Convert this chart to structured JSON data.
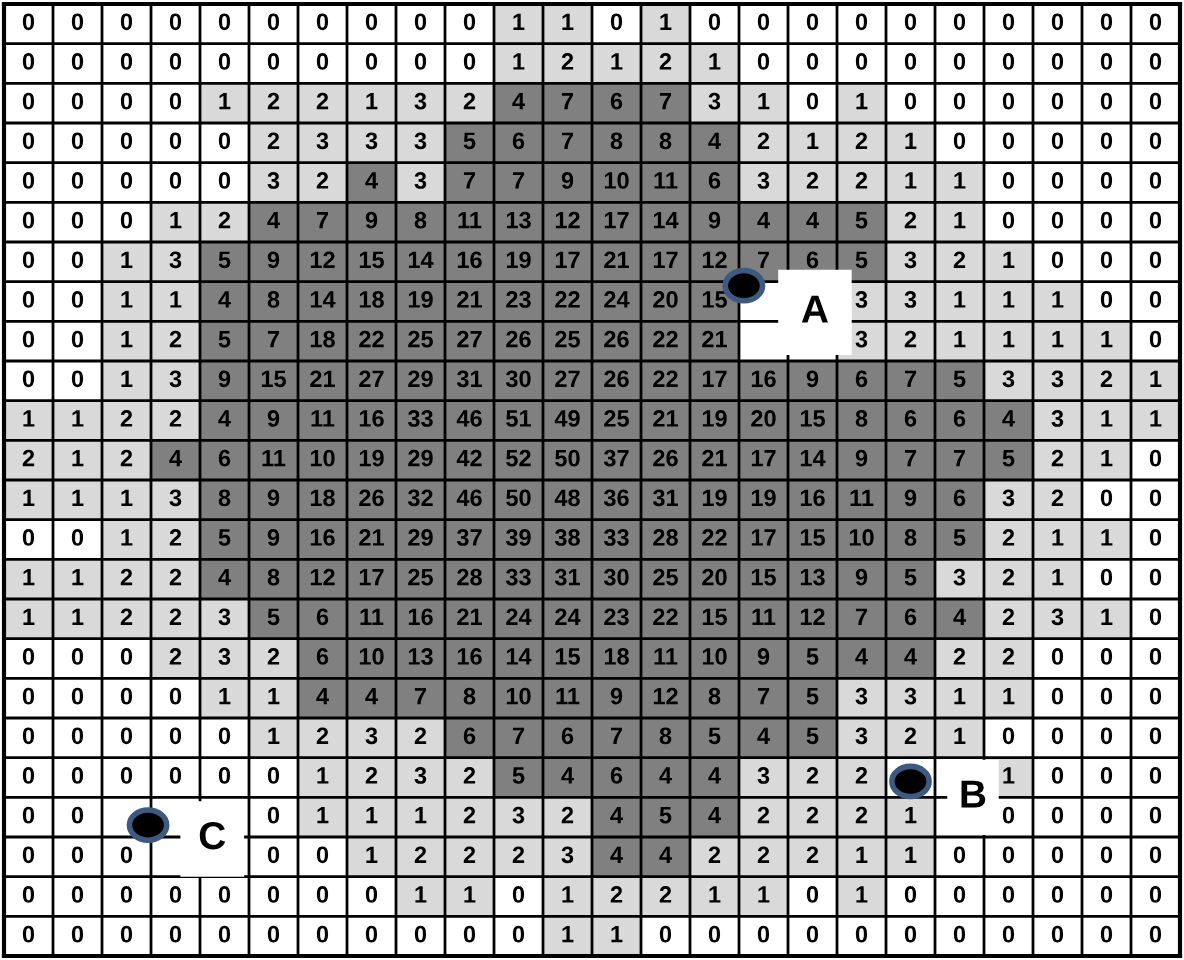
{
  "chart_data": {
    "type": "heatmap",
    "categories": [
      null,
      null,
      null,
      null,
      null,
      null,
      null,
      null,
      null,
      null,
      null,
      null,
      null,
      null,
      null,
      null,
      null,
      null,
      null,
      null,
      null,
      null,
      null,
      null
    ],
    "y_categories": [
      null,
      null,
      null,
      null,
      null,
      null,
      null,
      null,
      null,
      null,
      null,
      null,
      null,
      null,
      null,
      null,
      null,
      null,
      null,
      null,
      null,
      null,
      null,
      null
    ],
    "colors": [
      "#ffffff",
      "#d9d9d9",
      "#808080"
    ],
    "data_labels": true,
    "annotations": [
      "A",
      "B",
      "C"
    ],
    "cells": [
      [
        0,
        0,
        0,
        0,
        0,
        0,
        0,
        0,
        0,
        0,
        1,
        1,
        0,
        1,
        0,
        0,
        0,
        0,
        0,
        0,
        0,
        0,
        0,
        0
      ],
      [
        0,
        0,
        0,
        0,
        0,
        0,
        0,
        0,
        0,
        0,
        1,
        2,
        1,
        2,
        1,
        0,
        0,
        0,
        0,
        0,
        0,
        0,
        0,
        0
      ],
      [
        0,
        0,
        0,
        0,
        1,
        2,
        2,
        1,
        3,
        2,
        4,
        7,
        6,
        7,
        3,
        1,
        0,
        1,
        0,
        0,
        0,
        0,
        0,
        0
      ],
      [
        0,
        0,
        0,
        0,
        0,
        2,
        3,
        3,
        3,
        5,
        6,
        7,
        8,
        8,
        4,
        2,
        1,
        2,
        1,
        0,
        0,
        0,
        0,
        0
      ],
      [
        0,
        0,
        0,
        0,
        0,
        3,
        2,
        4,
        3,
        7,
        7,
        9,
        10,
        11,
        6,
        3,
        2,
        2,
        1,
        1,
        0,
        0,
        0,
        0
      ],
      [
        0,
        0,
        0,
        1,
        2,
        4,
        7,
        9,
        8,
        11,
        13,
        12,
        17,
        14,
        9,
        4,
        4,
        5,
        2,
        1,
        0,
        0,
        0,
        0
      ],
      [
        0,
        0,
        1,
        3,
        5,
        9,
        12,
        15,
        14,
        16,
        19,
        17,
        21,
        17,
        12,
        7,
        6,
        5,
        3,
        2,
        1,
        0,
        0,
        0
      ],
      [
        0,
        0,
        1,
        1,
        4,
        8,
        14,
        18,
        19,
        21,
        23,
        22,
        24,
        20,
        15,
        null,
        null,
        3,
        3,
        1,
        1,
        1,
        0,
        0
      ],
      [
        0,
        0,
        1,
        2,
        5,
        7,
        18,
        22,
        25,
        27,
        26,
        25,
        26,
        22,
        21,
        null,
        null,
        3,
        2,
        1,
        1,
        1,
        1,
        0
      ],
      [
        0,
        0,
        1,
        3,
        9,
        15,
        21,
        27,
        29,
        31,
        30,
        27,
        26,
        22,
        17,
        16,
        9,
        6,
        7,
        5,
        3,
        3,
        2,
        1
      ],
      [
        1,
        1,
        2,
        2,
        4,
        9,
        11,
        16,
        33,
        46,
        51,
        49,
        25,
        21,
        19,
        20,
        15,
        8,
        6,
        6,
        4,
        3,
        1,
        1
      ],
      [
        2,
        1,
        2,
        4,
        6,
        11,
        10,
        19,
        29,
        42,
        52,
        50,
        37,
        26,
        21,
        17,
        14,
        9,
        7,
        7,
        5,
        2,
        1,
        0
      ],
      [
        1,
        1,
        1,
        3,
        8,
        9,
        18,
        26,
        32,
        46,
        50,
        48,
        36,
        31,
        19,
        19,
        16,
        11,
        9,
        6,
        3,
        2,
        0,
        0
      ],
      [
        0,
        0,
        1,
        2,
        5,
        9,
        16,
        21,
        29,
        37,
        39,
        38,
        33,
        28,
        22,
        17,
        15,
        10,
        8,
        5,
        2,
        1,
        1,
        0
      ],
      [
        1,
        1,
        2,
        2,
        4,
        8,
        12,
        17,
        25,
        28,
        33,
        31,
        30,
        25,
        20,
        15,
        13,
        9,
        5,
        3,
        2,
        1,
        0,
        0
      ],
      [
        1,
        1,
        2,
        2,
        3,
        5,
        6,
        11,
        16,
        21,
        24,
        24,
        23,
        22,
        15,
        11,
        12,
        7,
        6,
        4,
        2,
        3,
        1,
        0
      ],
      [
        0,
        0,
        0,
        2,
        3,
        2,
        6,
        10,
        13,
        16,
        14,
        15,
        18,
        11,
        10,
        9,
        5,
        4,
        4,
        2,
        2,
        0,
        0,
        0
      ],
      [
        0,
        0,
        0,
        0,
        1,
        1,
        4,
        4,
        7,
        8,
        10,
        11,
        9,
        12,
        8,
        7,
        5,
        3,
        3,
        1,
        1,
        0,
        0,
        0
      ],
      [
        0,
        0,
        0,
        0,
        0,
        1,
        2,
        3,
        2,
        6,
        7,
        6,
        7,
        8,
        5,
        4,
        5,
        3,
        2,
        1,
        0,
        0,
        0,
        0
      ],
      [
        0,
        0,
        0,
        0,
        0,
        0,
        1,
        2,
        3,
        2,
        5,
        4,
        6,
        4,
        4,
        3,
        2,
        2,
        null,
        null,
        1,
        0,
        0,
        0
      ],
      [
        0,
        0,
        null,
        null,
        null,
        0,
        1,
        1,
        1,
        2,
        3,
        2,
        4,
        5,
        4,
        2,
        2,
        2,
        1,
        null,
        0,
        0,
        0,
        0
      ],
      [
        0,
        0,
        0,
        null,
        null,
        0,
        0,
        1,
        2,
        2,
        2,
        3,
        4,
        4,
        2,
        2,
        2,
        1,
        1,
        0,
        0,
        0,
        0,
        0
      ],
      [
        0,
        0,
        0,
        0,
        0,
        0,
        0,
        0,
        1,
        1,
        0,
        1,
        2,
        2,
        1,
        1,
        0,
        1,
        0,
        0,
        0,
        0,
        0,
        0
      ],
      [
        0,
        0,
        0,
        0,
        0,
        0,
        0,
        0,
        0,
        0,
        0,
        1,
        1,
        0,
        0,
        0,
        0,
        0,
        0,
        0,
        0,
        0,
        0,
        0
      ]
    ]
  }
}
